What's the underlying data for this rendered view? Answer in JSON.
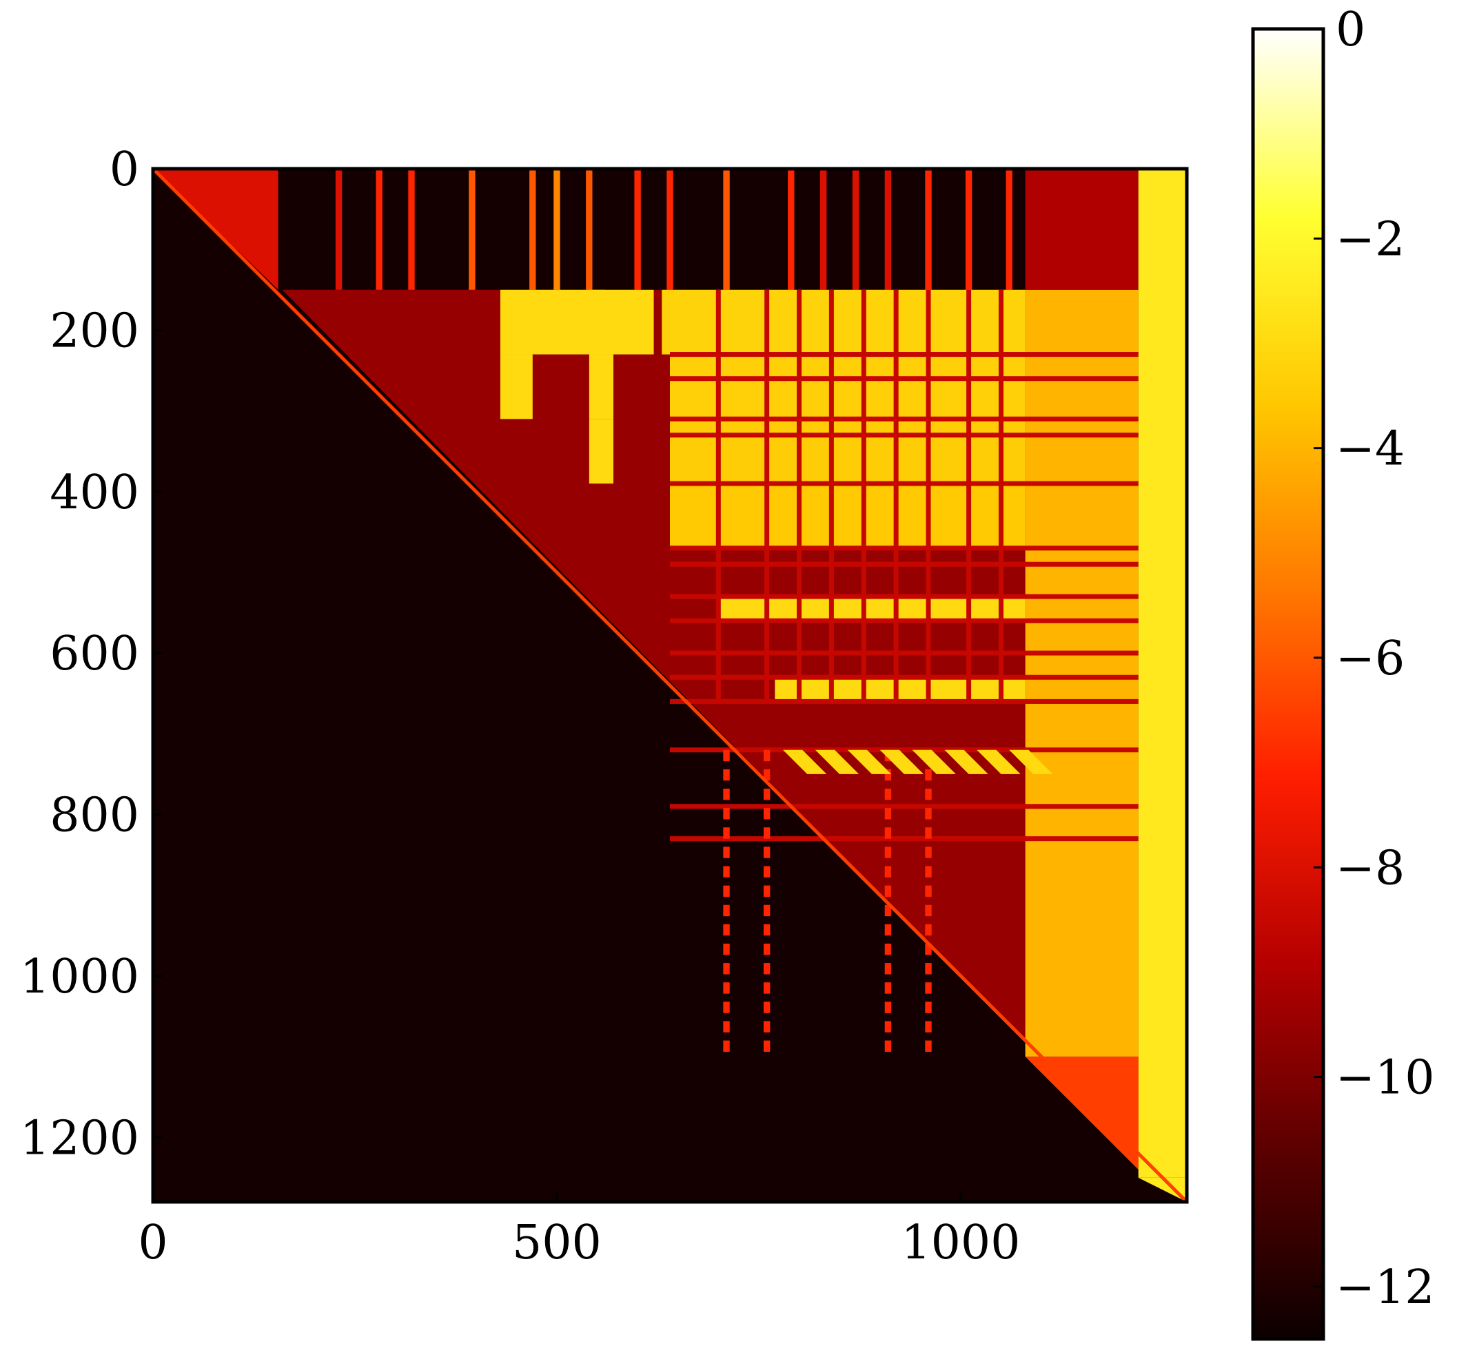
{
  "chart_data": {
    "type": "heatmap",
    "title": "",
    "xlabel": "",
    "ylabel": "",
    "matrix_size": 1280,
    "xlim": [
      0,
      1280
    ],
    "ylim": [
      0,
      1280
    ],
    "y_axis_inverted": true,
    "x_ticks": [
      {
        "value": 0,
        "label": "0"
      },
      {
        "value": 500,
        "label": "500"
      },
      {
        "value": 1000,
        "label": "1000"
      }
    ],
    "y_ticks": [
      {
        "value": 0,
        "label": "0"
      },
      {
        "value": 200,
        "label": "200"
      },
      {
        "value": 400,
        "label": "400"
      },
      {
        "value": 600,
        "label": "600"
      },
      {
        "value": 800,
        "label": "800"
      },
      {
        "value": 1000,
        "label": "1000"
      },
      {
        "value": 1200,
        "label": "1200"
      }
    ],
    "colorbar": {
      "colormap": "hot",
      "range": [
        -12.5,
        0
      ],
      "ticks": [
        {
          "value": 0,
          "label": "0"
        },
        {
          "value": -2,
          "label": "−2"
        },
        {
          "value": -4,
          "label": "−4"
        },
        {
          "value": -6,
          "label": "−6"
        },
        {
          "value": -8,
          "label": "−8"
        },
        {
          "value": -10,
          "label": "−10"
        },
        {
          "value": -12,
          "label": "−12"
        }
      ],
      "colors": [
        "#0b0000",
        "#5a0000",
        "#b40000",
        "#ff1e00",
        "#ff7800",
        "#ffc800",
        "#ffff32",
        "#ffffff"
      ]
    },
    "structure": {
      "background_value": -12.3,
      "diagonal": {
        "from": 0,
        "to": 1280,
        "value": -6.5
      },
      "upper_left_band": {
        "row_range": [
          0,
          150
        ],
        "col_range": [
          0,
          155
        ],
        "value": -8
      },
      "bright_right_columns": {
        "col_range": [
          1220,
          1280
        ],
        "value": -2.5
      },
      "right_block": {
        "col_range": [
          1080,
          1220
        ],
        "row_range": [
          150,
          1100
        ],
        "value": -4
      },
      "vertical_stripes": [
        {
          "col": 230,
          "value": -8
        },
        {
          "col": 280,
          "value": -7
        },
        {
          "col": 320,
          "value": -7
        },
        {
          "col": 395,
          "value": -6
        },
        {
          "col": 470,
          "value": -6
        },
        {
          "col": 500,
          "value": -5
        },
        {
          "col": 540,
          "value": -6
        },
        {
          "col": 600,
          "value": -7
        },
        {
          "col": 640,
          "value": -7
        },
        {
          "col": 710,
          "value": -6
        },
        {
          "col": 790,
          "value": -7
        },
        {
          "col": 830,
          "value": -8
        },
        {
          "col": 870,
          "value": -8
        },
        {
          "col": 910,
          "value": -8
        },
        {
          "col": 960,
          "value": -7
        },
        {
          "col": 1010,
          "value": -7
        },
        {
          "col": 1060,
          "value": -7
        }
      ],
      "bright_blocks": [
        {
          "rows": [
            150,
            230
          ],
          "cols": [
            430,
            560
          ],
          "value": -3
        },
        {
          "rows": [
            150,
            230
          ],
          "cols": [
            540,
            620
          ],
          "value": -3
        },
        {
          "rows": [
            150,
            230
          ],
          "cols": [
            630,
            1080
          ],
          "value": -3.2
        },
        {
          "rows": [
            230,
            310
          ],
          "cols": [
            430,
            470
          ],
          "value": -3
        },
        {
          "rows": [
            230,
            310
          ],
          "cols": [
            540,
            570
          ],
          "value": -3
        },
        {
          "rows": [
            230,
            310
          ],
          "cols": [
            640,
            1080
          ],
          "value": -3.3
        },
        {
          "rows": [
            310,
            390
          ],
          "cols": [
            540,
            570
          ],
          "value": -3
        },
        {
          "rows": [
            310,
            390
          ],
          "cols": [
            640,
            1080
          ],
          "value": -3.4
        },
        {
          "rows": [
            390,
            470
          ],
          "cols": [
            640,
            1080
          ],
          "value": -3.5
        },
        {
          "rows": [
            530,
            560
          ],
          "cols": [
            700,
            1080
          ],
          "value": -3
        },
        {
          "rows": [
            630,
            660
          ],
          "cols": [
            770,
            1080
          ],
          "value": -3
        }
      ]
    }
  }
}
